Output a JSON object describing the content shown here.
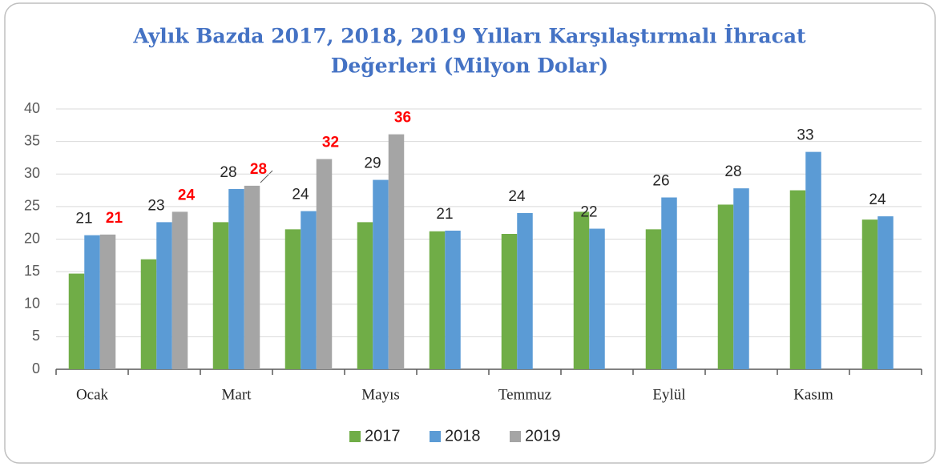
{
  "chart_data": {
    "type": "bar",
    "title": "Aylık Bazda 2017, 2018, 2019 Yılları Karşılaştırmalı İhracat",
    "subtitle": "Değerleri (Milyon Dolar)",
    "categories": [
      "Ocak",
      null,
      "Mart",
      null,
      "Mayıs",
      null,
      "Temmuz",
      null,
      "Eylül",
      null,
      "Kasım",
      null
    ],
    "series": [
      {
        "name": "2017",
        "color": "#70ad47",
        "values": [
          14.7,
          16.9,
          22.6,
          21.5,
          22.6,
          21.2,
          20.8,
          24.2,
          21.5,
          25.3,
          27.5,
          23.0
        ]
      },
      {
        "name": "2018",
        "color": "#5b9bd5",
        "label_color": "#262626",
        "values": [
          20.6,
          22.6,
          27.7,
          24.3,
          29.1,
          21.3,
          24.0,
          21.6,
          26.4,
          27.8,
          33.4,
          23.5
        ],
        "value_labels": [
          "21",
          "23",
          "28",
          "24",
          "29",
          "21",
          "24",
          "22",
          "26",
          "28",
          "33",
          "24"
        ]
      },
      {
        "name": "2019",
        "color": "#a5a5a5",
        "label_color": "#ff0000",
        "values": [
          20.7,
          24.2,
          28.2,
          32.3,
          36.1,
          null,
          null,
          null,
          null,
          null,
          null,
          null
        ],
        "value_labels": [
          "21",
          "24",
          "28",
          "32",
          "36",
          null,
          null,
          null,
          null,
          null,
          null,
          null
        ]
      }
    ],
    "ylim": [
      0,
      40
    ],
    "yticks": [
      0,
      5,
      10,
      15,
      20,
      25,
      30,
      35,
      40
    ],
    "grid": true,
    "legend": "bottom"
  }
}
